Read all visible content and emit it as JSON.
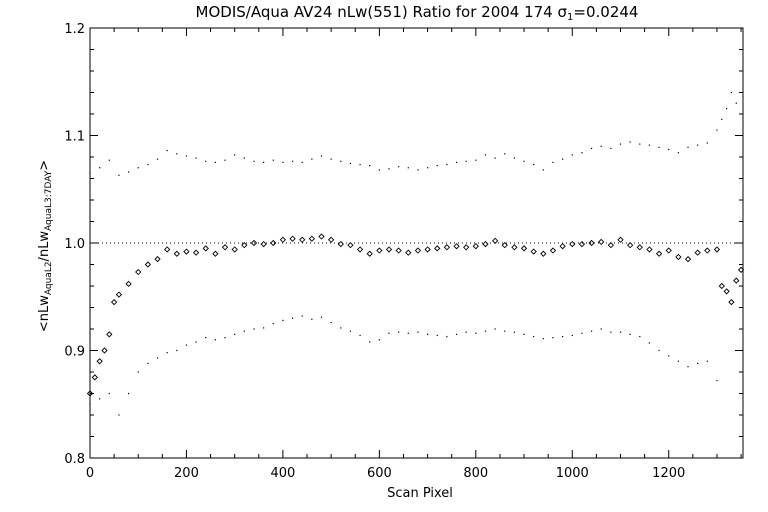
{
  "chart_data": {
    "type": "scatter",
    "title": "MODIS/Aqua AV24 nLw(551) Ratio for 2004 174 σ1=0.0244",
    "title_parts": {
      "main": "MODIS/Aqua AV24 nLw(551) Ratio for 2004 174 ",
      "sigma_symbol": "σ",
      "sigma_subscript": "1",
      "sigma_value": "=0.0244"
    },
    "xlabel": "Scan Pixel",
    "ylabel": "<nLw_AquaL2/nLw_AquaL3:7DAY>",
    "ylabel_parts": {
      "open": "<",
      "num": "nLw",
      "num_sub": "AquaL2",
      "slash": "/",
      "den": "nLw",
      "den_sub": "AquaL3:7DAY",
      "close": ">"
    },
    "xlim": [
      0,
      1354
    ],
    "ylim": [
      0.8,
      1.2
    ],
    "x_ticks": [
      0,
      200,
      400,
      600,
      800,
      1000,
      1200
    ],
    "x_tick_labels": [
      "0",
      "200",
      "400",
      "600",
      "800",
      "1000",
      "1200"
    ],
    "y_ticks": [
      0.8,
      0.9,
      1.0,
      1.1,
      1.2
    ],
    "y_tick_labels": [
      "0.8",
      "0.9",
      "1.0",
      "1.1",
      "1.2"
    ],
    "reference_line": 1.0,
    "series": [
      {
        "role": "mean",
        "marker": "diamond",
        "x": [
          0,
          10,
          20,
          30,
          40,
          50,
          60,
          80,
          100,
          120,
          140,
          160,
          180,
          200,
          220,
          240,
          260,
          280,
          300,
          320,
          340,
          360,
          380,
          400,
          420,
          440,
          460,
          480,
          500,
          520,
          540,
          560,
          580,
          600,
          620,
          640,
          660,
          680,
          700,
          720,
          740,
          760,
          780,
          800,
          820,
          840,
          860,
          880,
          900,
          920,
          940,
          960,
          980,
          1000,
          1020,
          1040,
          1060,
          1080,
          1100,
          1120,
          1140,
          1160,
          1180,
          1200,
          1220,
          1240,
          1260,
          1280,
          1300,
          1310,
          1320,
          1330,
          1340,
          1350
        ],
        "y": [
          0.86,
          0.875,
          0.89,
          0.9,
          0.915,
          0.945,
          0.952,
          0.962,
          0.973,
          0.98,
          0.985,
          0.994,
          0.99,
          0.992,
          0.991,
          0.995,
          0.99,
          0.996,
          0.994,
          0.998,
          1.0,
          0.999,
          1.0,
          1.003,
          1.004,
          1.003,
          1.004,
          1.006,
          1.003,
          0.999,
          0.998,
          0.994,
          0.99,
          0.993,
          0.994,
          0.993,
          0.991,
          0.993,
          0.994,
          0.995,
          0.996,
          0.997,
          0.996,
          0.997,
          0.999,
          1.002,
          0.998,
          0.996,
          0.995,
          0.992,
          0.99,
          0.993,
          0.997,
          0.999,
          0.999,
          1.0,
          1.001,
          0.998,
          1.003,
          0.998,
          0.996,
          0.994,
          0.99,
          0.993,
          0.987,
          0.985,
          0.991,
          0.993,
          0.994,
          0.96,
          0.955,
          0.945,
          0.965,
          0.975
        ]
      },
      {
        "role": "upper",
        "marker": "dot",
        "x": [
          0,
          20,
          40,
          60,
          80,
          100,
          120,
          140,
          160,
          180,
          200,
          220,
          240,
          260,
          280,
          300,
          320,
          340,
          360,
          380,
          400,
          420,
          440,
          460,
          480,
          500,
          520,
          540,
          560,
          580,
          600,
          620,
          640,
          660,
          680,
          700,
          720,
          740,
          760,
          780,
          800,
          820,
          840,
          860,
          880,
          900,
          920,
          940,
          960,
          980,
          1000,
          1020,
          1040,
          1060,
          1080,
          1100,
          1120,
          1140,
          1160,
          1180,
          1200,
          1220,
          1240,
          1260,
          1280,
          1300,
          1310,
          1320,
          1330,
          1340
        ],
        "y": [
          1.065,
          1.07,
          1.077,
          1.063,
          1.066,
          1.07,
          1.073,
          1.078,
          1.086,
          1.083,
          1.081,
          1.079,
          1.076,
          1.075,
          1.077,
          1.082,
          1.079,
          1.076,
          1.075,
          1.077,
          1.075,
          1.076,
          1.075,
          1.078,
          1.081,
          1.078,
          1.076,
          1.074,
          1.073,
          1.072,
          1.068,
          1.069,
          1.071,
          1.07,
          1.068,
          1.07,
          1.072,
          1.073,
          1.075,
          1.076,
          1.077,
          1.082,
          1.079,
          1.083,
          1.079,
          1.076,
          1.073,
          1.068,
          1.075,
          1.078,
          1.082,
          1.084,
          1.088,
          1.09,
          1.088,
          1.092,
          1.094,
          1.092,
          1.091,
          1.089,
          1.087,
          1.084,
          1.089,
          1.091,
          1.093,
          1.105,
          1.115,
          1.125,
          1.14,
          1.13
        ]
      },
      {
        "role": "lower",
        "marker": "dot",
        "x": [
          0,
          20,
          40,
          60,
          80,
          100,
          120,
          140,
          160,
          180,
          200,
          220,
          240,
          260,
          280,
          300,
          320,
          340,
          360,
          380,
          400,
          420,
          440,
          460,
          480,
          500,
          520,
          540,
          560,
          580,
          600,
          620,
          640,
          660,
          680,
          700,
          720,
          740,
          760,
          780,
          800,
          820,
          840,
          860,
          880,
          900,
          920,
          940,
          960,
          980,
          1000,
          1020,
          1040,
          1060,
          1080,
          1100,
          1120,
          1140,
          1160,
          1180,
          1200,
          1220,
          1240,
          1260,
          1280,
          1300
        ],
        "y": [
          0.85,
          0.855,
          0.86,
          0.84,
          0.86,
          0.88,
          0.888,
          0.893,
          0.898,
          0.9,
          0.905,
          0.908,
          0.912,
          0.91,
          0.912,
          0.915,
          0.918,
          0.92,
          0.921,
          0.925,
          0.928,
          0.93,
          0.932,
          0.929,
          0.931,
          0.926,
          0.921,
          0.918,
          0.914,
          0.908,
          0.91,
          0.916,
          0.917,
          0.916,
          0.917,
          0.915,
          0.914,
          0.913,
          0.915,
          0.917,
          0.916,
          0.918,
          0.92,
          0.918,
          0.917,
          0.915,
          0.913,
          0.911,
          0.912,
          0.913,
          0.914,
          0.916,
          0.918,
          0.92,
          0.917,
          0.917,
          0.915,
          0.913,
          0.907,
          0.9,
          0.895,
          0.89,
          0.885,
          0.888,
          0.89,
          0.872
        ]
      }
    ]
  }
}
